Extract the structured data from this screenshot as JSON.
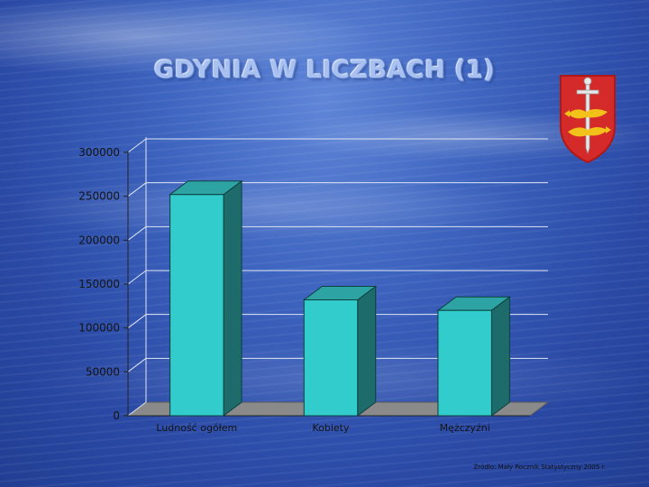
{
  "title": "GDYNIA W LICZBACH (1)",
  "source": "Źródło: Mały Rocznik Statystyczny 2005 r.",
  "crest_icon": "gdynia-coat-of-arms",
  "colors": {
    "bar_front": "#33cccc",
    "bar_side": "#1d6b6b",
    "bar_top": "#2ea3a3",
    "floor": "#8a8a8a"
  },
  "chart_data": {
    "type": "bar",
    "title": "",
    "xlabel": "",
    "ylabel": "",
    "categories": [
      "Ludność ogółem",
      "Kobiety",
      "Mężczyźni"
    ],
    "values": [
      252000,
      132000,
      120000
    ],
    "ylim": [
      0,
      300000
    ],
    "yticks": [
      "0",
      "50000",
      "100000",
      "150000",
      "200000",
      "250000",
      "300000"
    ],
    "grid": true,
    "legend": "none"
  }
}
